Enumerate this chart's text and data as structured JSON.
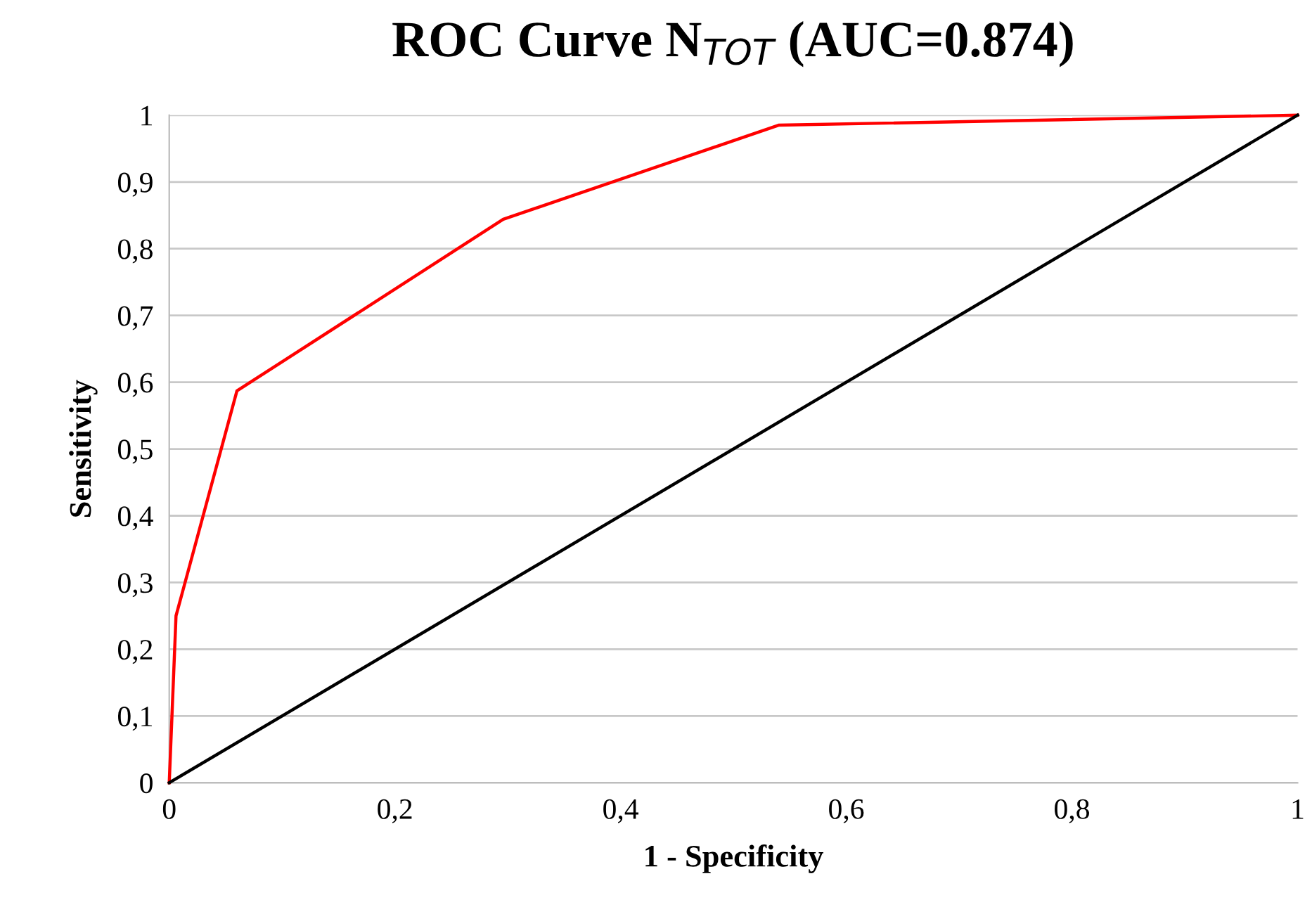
{
  "chart_data": {
    "type": "line",
    "title": "ROC Curve N$_{TOT}$ (AUC=0.874)",
    "xlabel": "1 - Specificity",
    "ylabel": "Sensitivity",
    "series": [
      {
        "color": "#ff0000",
        "x": [
          0,
          0.006,
          0.06,
          0.296,
          0.54,
          1
        ],
        "values": [
          0,
          0.25,
          0.587,
          0.844,
          0.985,
          1
        ]
      },
      {
        "color": "#000000",
        "x": [
          0,
          1
        ],
        "values": [
          0,
          1
        ]
      }
    ],
    "xlim": [
      0,
      1
    ],
    "ylim": [
      0,
      1
    ],
    "xticks": [
      0,
      {
        "value": 0.2,
        "label": "0,2"
      },
      {
        "value": 0.4,
        "label": "0,4"
      },
      {
        "value": 0.6,
        "label": "0,6"
      },
      {
        "value": 0.8,
        "label": "0,8"
      },
      1
    ],
    "yticks": [
      0,
      {
        "value": 0.1,
        "label": "0,1"
      },
      {
        "value": 0.2,
        "label": "0,2"
      },
      {
        "value": 0.3,
        "label": "0,3"
      },
      {
        "value": 0.4,
        "label": "0,4"
      },
      {
        "value": 0.5,
        "label": "0,5"
      },
      {
        "value": 0.6,
        "label": "0,6"
      },
      {
        "value": 0.7,
        "label": "0,7"
      },
      {
        "value": 0.8,
        "label": "0,8"
      },
      {
        "value": 0.9,
        "label": "0,9"
      },
      1
    ],
    "grid": "y",
    "legend": false,
    "marker": "none",
    "line_style": "solid"
  }
}
